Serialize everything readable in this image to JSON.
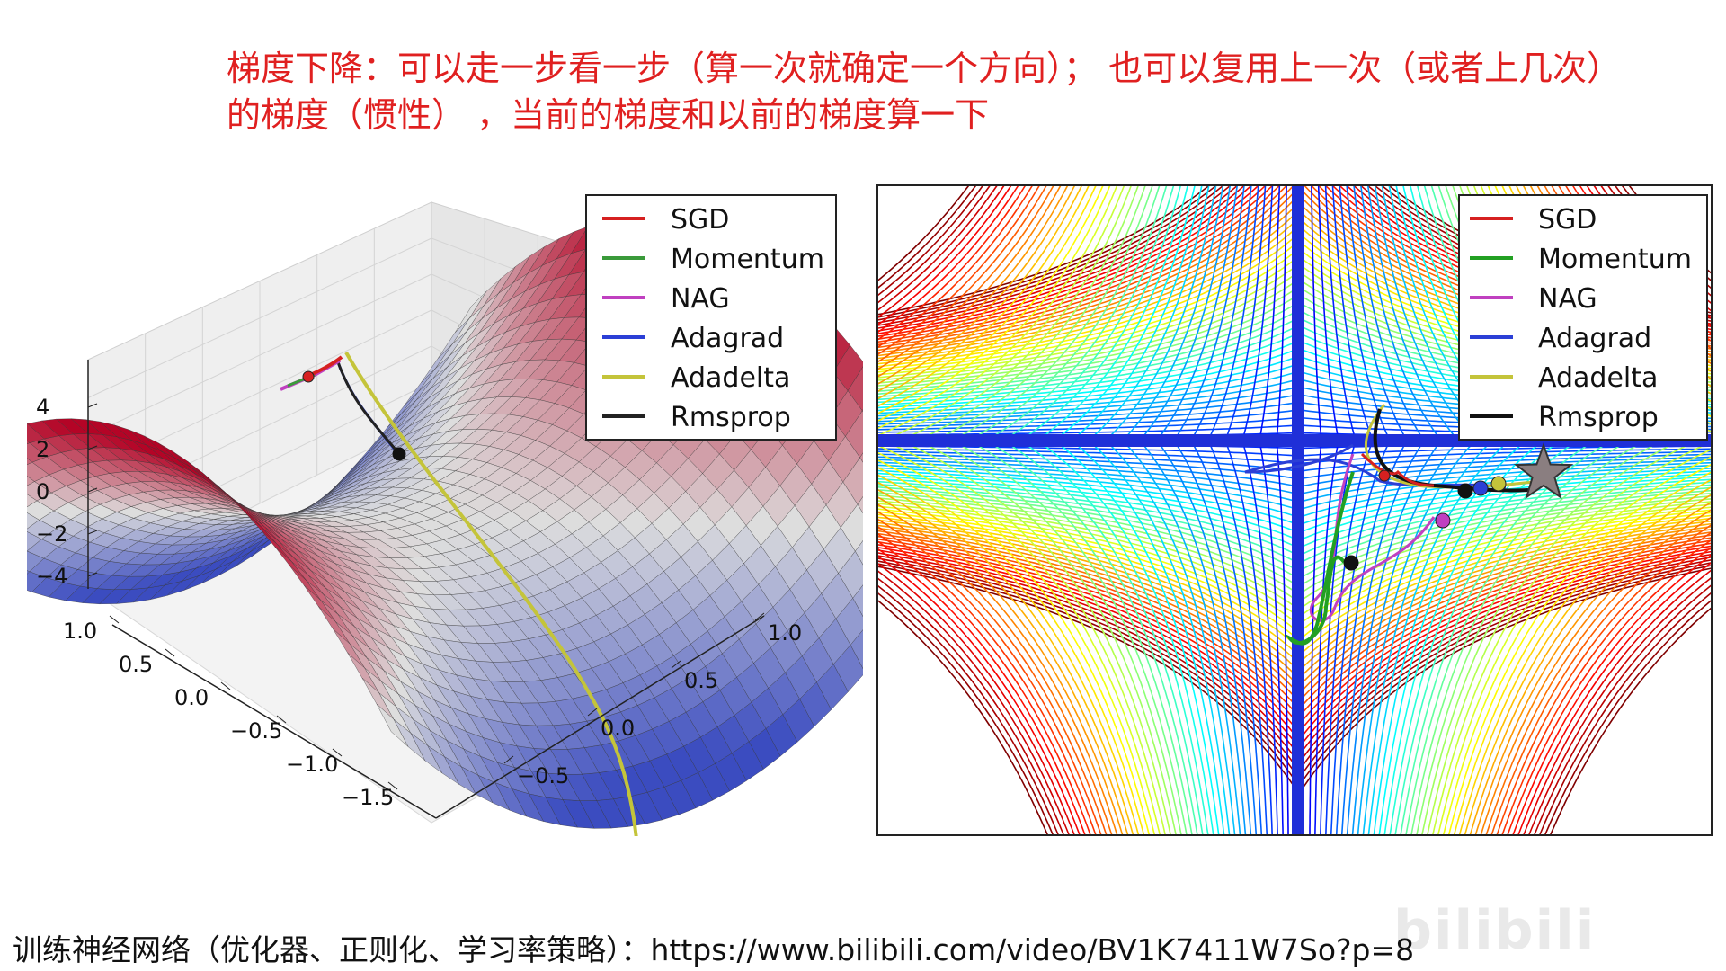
{
  "caption": {
    "line1": "梯度下降：可以走一步看一步（算一次就确定一个方向）；  也可以复用上一次（或者上几次）",
    "line2": "的梯度（惯性） ，当前的梯度和以前的梯度算一下"
  },
  "footer": {
    "text": "训练神经网络（优化器、正则化、学习率策略）：https://www.bilibili.com/video/BV1K7411W7So?p=8"
  },
  "watermark": {
    "text": "bilibili"
  },
  "chart_data": [
    {
      "type": "surface",
      "surface": "saddle",
      "zlim": [
        -4,
        4
      ],
      "z_ticks": [
        "4",
        "2",
        "0",
        "−2",
        "−4"
      ],
      "x_ticks": [
        "1.0",
        "0.5",
        "0.0",
        "−0.5",
        "−1.0",
        "−1.5"
      ],
      "y_ticks": [
        "1.0",
        "0.5",
        "0.0",
        "−0.5"
      ],
      "legend_placement": "top-right",
      "series": [
        {
          "name": "SGD",
          "color": "#d62020"
        },
        {
          "name": "Momentum",
          "color": "#3a9a3a"
        },
        {
          "name": "NAG",
          "color": "#c040c0"
        },
        {
          "name": "Adagrad",
          "color": "#2b3fd6"
        },
        {
          "name": "Adadelta",
          "color": "#c4c43a"
        },
        {
          "name": "Rmsprop",
          "color": "#222222"
        }
      ]
    },
    {
      "type": "contour",
      "surface": "saddle",
      "grid": false,
      "legend_placement": "top-right",
      "minimum_marker": "star",
      "series": [
        {
          "name": "SGD",
          "color": "#d62020"
        },
        {
          "name": "Momentum",
          "color": "#22a022"
        },
        {
          "name": "NAG",
          "color": "#c040c0"
        },
        {
          "name": "Adagrad",
          "color": "#2b3fd6"
        },
        {
          "name": "Adadelta",
          "color": "#c4c43a"
        },
        {
          "name": "Rmsprop",
          "color": "#111111"
        }
      ]
    }
  ]
}
